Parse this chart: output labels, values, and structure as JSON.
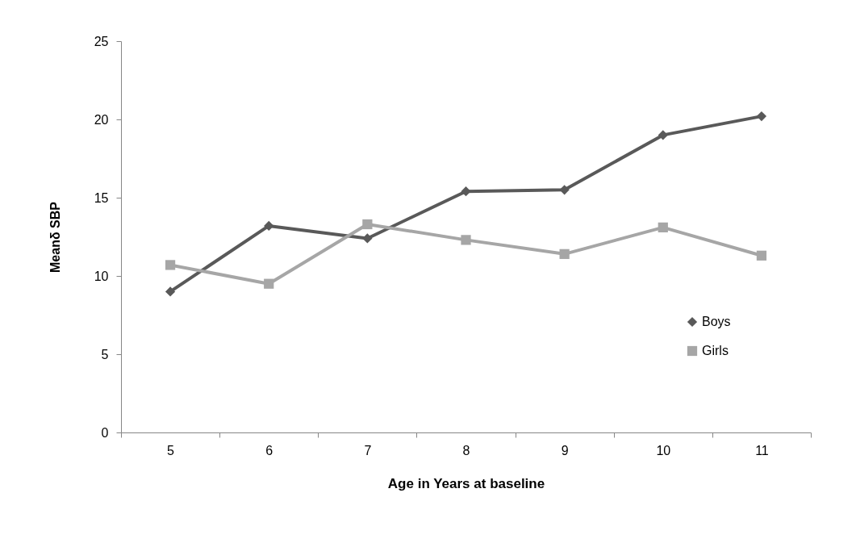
{
  "chart_data": {
    "type": "line",
    "xlabel": "Age in Years at baseline",
    "ylabel": "Meanδ SBP",
    "categories": [
      "5",
      "6",
      "7",
      "8",
      "9",
      "10",
      "11"
    ],
    "series": [
      {
        "name": "Boys",
        "color": "#595959",
        "marker": "diamond",
        "values": [
          9.0,
          13.2,
          12.4,
          15.4,
          15.5,
          19.0,
          20.2
        ]
      },
      {
        "name": "Girls",
        "color": "#a6a6a6",
        "marker": "square",
        "values": [
          10.7,
          9.5,
          13.3,
          12.3,
          11.4,
          13.1,
          11.3
        ]
      }
    ],
    "ylim": [
      0,
      25
    ],
    "yticks": [
      0,
      5,
      10,
      15,
      20,
      25
    ],
    "grid": false,
    "legend": "right"
  }
}
